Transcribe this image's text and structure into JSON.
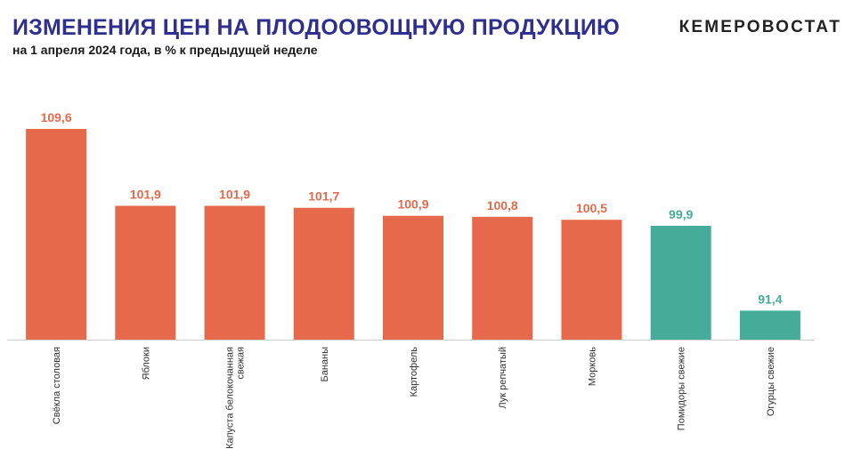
{
  "header": {
    "title": "ИЗМЕНЕНИЯ ЦЕН НА ПЛОДООВОЩНУЮ ПРОДУКЦИЮ",
    "subtitle": "на 1 апреля 2024 года, в % к предыдущей неделе",
    "brand": "КЕМЕРОВОСТАТ"
  },
  "colors": {
    "increase": "#e5694a",
    "decrease": "#45ac9a",
    "axis": "#d0d0d0"
  },
  "chart_data": {
    "type": "bar",
    "title": "ИЗМЕНЕНИЯ ЦЕН НА ПЛОДООВОЩНУЮ ПРОДУКЦИЮ",
    "subtitle": "на 1 апреля 2024 года, в % к предыдущей неделе",
    "categories": [
      [
        "Свёкла столовая"
      ],
      [
        "Яблоки"
      ],
      [
        "Капуста белокочанная",
        "свежая"
      ],
      [
        "Бананы"
      ],
      [
        "Картофель"
      ],
      [
        "Лук репчатый"
      ],
      [
        "Морковь"
      ],
      [
        "Помидоры свежие"
      ],
      [
        "Огурцы свежие"
      ]
    ],
    "values": [
      109.6,
      101.9,
      101.9,
      101.7,
      100.9,
      100.8,
      100.5,
      99.9,
      91.4
    ],
    "value_labels": [
      "109,6",
      "101,9",
      "101,9",
      "101,7",
      "100,9",
      "100,8",
      "100,5",
      "99,9",
      "91,4"
    ],
    "xlabel": "",
    "ylabel": "",
    "ylim": [
      88.5,
      109.6
    ],
    "grid": false,
    "legend": "none"
  }
}
